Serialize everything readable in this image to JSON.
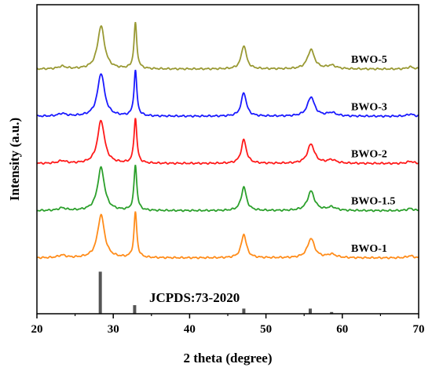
{
  "chart_data": {
    "type": "line",
    "title": "",
    "xlabel": "2 theta (degree)",
    "ylabel": "Intensity (a.u.)",
    "xlim": [
      20,
      70
    ],
    "xticks": [
      20,
      30,
      40,
      50,
      60,
      70
    ],
    "ylim": [
      0,
      7.2
    ],
    "grid": false,
    "legend": "inline labels to the right of each curve",
    "peaks": [
      {
        "pos": 23.3,
        "h": 0.06,
        "w": 0.6
      },
      {
        "pos": 28.4,
        "h": 1.0,
        "w": 0.55
      },
      {
        "pos": 32.9,
        "h": 1.06,
        "w": 0.22
      },
      {
        "pos": 47.1,
        "h": 0.55,
        "w": 0.4
      },
      {
        "pos": 55.9,
        "h": 0.45,
        "w": 0.55
      },
      {
        "pos": 58.6,
        "h": 0.08,
        "w": 0.7
      },
      {
        "pos": 68.9,
        "h": 0.05,
        "w": 0.5
      }
    ],
    "series": [
      {
        "name": "BWO-1",
        "color": "#ff8c1a",
        "baseline": 1.3
      },
      {
        "name": "BWO-1.5",
        "color": "#2ca02c",
        "baseline": 2.4
      },
      {
        "name": "BWO-2",
        "color": "#ff1a1a",
        "baseline": 3.5
      },
      {
        "name": "BWO-3",
        "color": "#1a1aff",
        "baseline": 4.6
      },
      {
        "name": "BWO-5",
        "color": "#999933",
        "baseline": 5.7
      }
    ],
    "reference": {
      "name": "JCPDS:73-2020",
      "color": "#555555",
      "lines": [
        {
          "x": 28.3,
          "h": 0.98
        },
        {
          "x": 32.8,
          "h": 0.2
        },
        {
          "x": 47.1,
          "h": 0.12
        },
        {
          "x": 55.8,
          "h": 0.12
        },
        {
          "x": 58.6,
          "h": 0.04
        }
      ]
    }
  }
}
